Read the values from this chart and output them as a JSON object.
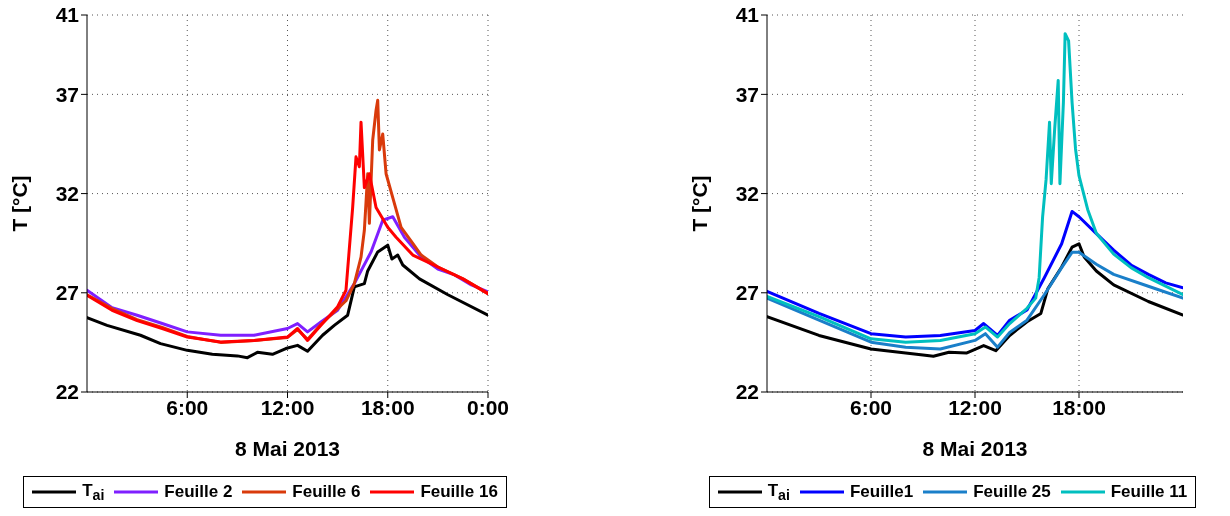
{
  "chart_data": [
    {
      "type": "line",
      "xlabel": "8 Mai 2013",
      "ylabel": "T [°C]",
      "xlim": [
        0,
        24
      ],
      "xticks": [
        {
          "value": 6,
          "label": "6:00"
        },
        {
          "value": 12,
          "label": "12:00"
        },
        {
          "value": 18,
          "label": "18:00"
        },
        {
          "value": 24,
          "label": "0:00"
        }
      ],
      "ylim": [
        22,
        41
      ],
      "yticks": [
        22,
        27,
        32,
        37,
        41
      ],
      "grid": true,
      "legend": "bottom",
      "marker": "none",
      "line_style": "solid",
      "series": [
        {
          "name": "T$_{ai}$",
          "color": "#000000",
          "x": [
            0,
            1.2,
            3.2,
            4.4,
            6,
            7.5,
            9,
            9.6,
            10.2,
            11.1,
            11.9,
            12.6,
            13.2,
            14.1,
            14.8,
            15.6,
            16,
            16.6,
            16.8,
            17.4,
            18,
            18.25,
            18.6,
            18.9,
            19.9,
            21.6,
            24
          ],
          "values": [
            25.75,
            25.36,
            24.86,
            24.44,
            24.1,
            23.9,
            23.82,
            23.73,
            24.0,
            23.9,
            24.19,
            24.35,
            24.05,
            24.86,
            25.36,
            25.87,
            27.3,
            27.46,
            28.1,
            29.06,
            29.4,
            28.7,
            28.9,
            28.4,
            27.7,
            26.9,
            25.87
          ]
        },
        {
          "name": "Feuille 2",
          "color": "#7f1fff",
          "x": [
            0,
            1.5,
            3,
            4.5,
            6,
            8,
            10,
            12,
            12.6,
            13.2,
            14,
            15,
            16,
            17,
            17.7,
            18.3,
            19,
            20,
            21,
            22,
            23,
            24
          ],
          "values": [
            27.13,
            26.25,
            25.87,
            25.45,
            25.03,
            24.86,
            24.86,
            25.2,
            25.45,
            25.03,
            25.53,
            26.12,
            27.46,
            29.06,
            30.66,
            30.83,
            29.8,
            28.8,
            28.2,
            27.9,
            27.4,
            27.05
          ]
        },
        {
          "name": "Feuille 6",
          "color": "#d93a0b",
          "x": [
            0,
            1.5,
            3,
            4.5,
            6,
            8,
            10,
            12,
            12.6,
            13.2,
            14,
            15,
            15.5,
            16,
            16.4,
            16.6,
            16.8,
            16.9,
            17.1,
            17.3,
            17.4,
            17.5,
            17.7,
            17.9,
            18.3,
            18.8,
            19.4,
            20,
            21,
            22.5,
            24
          ],
          "values": [
            26.9,
            26.2,
            25.65,
            25.25,
            24.8,
            24.5,
            24.6,
            24.75,
            25.15,
            24.65,
            25.4,
            26.2,
            26.6,
            27.46,
            28.8,
            30.15,
            33.0,
            30.5,
            34.7,
            36.2,
            36.7,
            34.2,
            35.0,
            33.0,
            31.8,
            30.3,
            29.6,
            28.9,
            28.3,
            27.7,
            26.96
          ]
        },
        {
          "name": "Feuille 16",
          "color": "#ff0000",
          "x": [
            0,
            1.5,
            3,
            4.5,
            6,
            8,
            10,
            12,
            12.6,
            13.2,
            14,
            15,
            15.5,
            15.9,
            16.1,
            16.3,
            16.4,
            16.6,
            16.9,
            17.3,
            18,
            18.5,
            19.5,
            21,
            22.5,
            24
          ],
          "values": [
            26.88,
            26.12,
            25.6,
            25.2,
            24.77,
            24.52,
            24.6,
            24.77,
            25.2,
            24.6,
            25.36,
            26.3,
            27.13,
            31.3,
            33.85,
            33.35,
            35.6,
            32.3,
            33.0,
            31.3,
            30.3,
            29.8,
            28.9,
            28.3,
            27.7,
            26.96
          ]
        }
      ]
    },
    {
      "type": "line",
      "xlabel": "8 Mai 2013",
      "ylabel": "T [°C]",
      "xlim": [
        0,
        24
      ],
      "xticks": [
        {
          "value": 6,
          "label": "6:00"
        },
        {
          "value": 12,
          "label": "12:00"
        },
        {
          "value": 18,
          "label": "18:00"
        }
      ],
      "ylim": [
        22,
        41
      ],
      "yticks": [
        22,
        27,
        32,
        37,
        41
      ],
      "grid": true,
      "legend": "bottom",
      "marker": "none",
      "line_style": "solid",
      "series": [
        {
          "name": "T$_{ai}$",
          "color": "#000000",
          "x": [
            0,
            3,
            6,
            9,
            9.6,
            10.5,
            11.5,
            12.5,
            13.2,
            14,
            15,
            15.8,
            16.2,
            17,
            17.6,
            18,
            18.3,
            19,
            20,
            22,
            24
          ],
          "values": [
            25.8,
            24.85,
            24.17,
            23.86,
            23.8,
            24.0,
            23.96,
            24.34,
            24.08,
            24.85,
            25.54,
            25.96,
            27.2,
            28.3,
            29.3,
            29.47,
            28.8,
            28.1,
            27.4,
            26.56,
            25.88
          ]
        },
        {
          "name": "Feuille1",
          "color": "#0000ff",
          "x": [
            0,
            3,
            6,
            8,
            10,
            12,
            12.5,
            13.3,
            14,
            15,
            16,
            17,
            17.6,
            18,
            19,
            20,
            21,
            22,
            23,
            24
          ],
          "values": [
            27.07,
            25.96,
            24.94,
            24.77,
            24.85,
            25.1,
            25.45,
            24.85,
            25.62,
            26.13,
            27.76,
            29.47,
            31.1,
            30.83,
            29.98,
            29.15,
            28.4,
            27.93,
            27.5,
            27.25
          ]
        },
        {
          "name": "Feuille 25",
          "color": "#1a7fc9",
          "x": [
            0,
            3,
            6,
            8,
            10,
            12,
            12.6,
            13.3,
            14,
            15,
            16,
            17,
            17.6,
            18,
            19,
            20,
            22,
            24
          ],
          "values": [
            26.73,
            25.62,
            24.51,
            24.26,
            24.17,
            24.6,
            24.94,
            24.26,
            25.0,
            25.62,
            26.9,
            28.27,
            29.04,
            29.04,
            28.44,
            27.93,
            27.33,
            26.73
          ]
        },
        {
          "name": "Feuille 11",
          "color": "#00bfbf",
          "x": [
            0,
            3,
            6,
            8,
            10,
            12,
            12.6,
            13.3,
            14,
            15,
            15.5,
            15.7,
            15.9,
            16.1,
            16.3,
            16.4,
            16.6,
            16.8,
            16.9,
            17.1,
            17.2,
            17.4,
            17.6,
            17.8,
            18,
            18.5,
            19,
            20,
            21,
            22,
            24
          ],
          "values": [
            26.82,
            25.8,
            24.68,
            24.51,
            24.6,
            24.94,
            25.28,
            24.77,
            25.45,
            26.22,
            26.73,
            27.76,
            30.83,
            32.7,
            35.6,
            32.5,
            35.3,
            37.7,
            32.5,
            36.6,
            40.06,
            39.7,
            36.6,
            34.25,
            32.9,
            31.2,
            30.0,
            28.95,
            28.27,
            27.76,
            26.9
          ]
        }
      ]
    }
  ]
}
